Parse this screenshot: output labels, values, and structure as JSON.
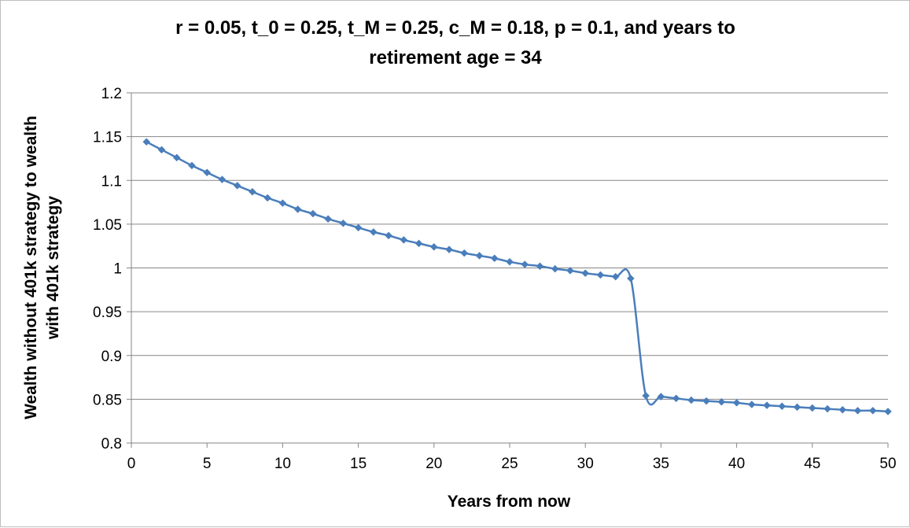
{
  "chart_data": {
    "type": "line",
    "title_lines": [
      "r = 0.05, t_0 = 0.25, t_M = 0.25, c_M = 0.18, p = 0.1, and years to",
      "retirement age = 34"
    ],
    "xlabel": "Years from now",
    "ylabel_lines": [
      "Wealth without 401k strategy to wealth",
      "with 401k strategy"
    ],
    "xlim": [
      0,
      50
    ],
    "ylim": [
      0.8,
      1.2
    ],
    "x_ticks": [
      "0",
      "5",
      "10",
      "15",
      "20",
      "25",
      "30",
      "35",
      "40",
      "45",
      "50"
    ],
    "y_ticks": [
      "0.8",
      "0.85",
      "0.9",
      "0.95",
      "1",
      "1.05",
      "1.1",
      "1.15",
      "1.2"
    ],
    "grid": "horizontal",
    "legend": "none",
    "series": [
      {
        "color": "#4a7ebb",
        "marker": "diamond",
        "x": [
          1,
          2,
          3,
          4,
          5,
          6,
          7,
          8,
          9,
          10,
          11,
          12,
          13,
          14,
          15,
          16,
          17,
          18,
          19,
          20,
          21,
          22,
          23,
          24,
          25,
          26,
          27,
          28,
          29,
          30,
          31,
          32,
          33,
          34,
          35,
          36,
          37,
          38,
          39,
          40,
          41,
          42,
          43,
          44,
          45,
          46,
          47,
          48,
          49,
          50
        ],
        "y": [
          1.144,
          1.135,
          1.126,
          1.117,
          1.109,
          1.101,
          1.094,
          1.087,
          1.08,
          1.074,
          1.067,
          1.062,
          1.056,
          1.051,
          1.046,
          1.041,
          1.037,
          1.032,
          1.028,
          1.024,
          1.021,
          1.017,
          1.014,
          1.011,
          1.007,
          1.004,
          1.002,
          0.999,
          0.997,
          0.994,
          0.992,
          0.99,
          0.988,
          0.854,
          0.853,
          0.851,
          0.849,
          0.848,
          0.847,
          0.846,
          0.844,
          0.843,
          0.842,
          0.841,
          0.84,
          0.839,
          0.838,
          0.837,
          0.837,
          0.836
        ]
      }
    ]
  }
}
